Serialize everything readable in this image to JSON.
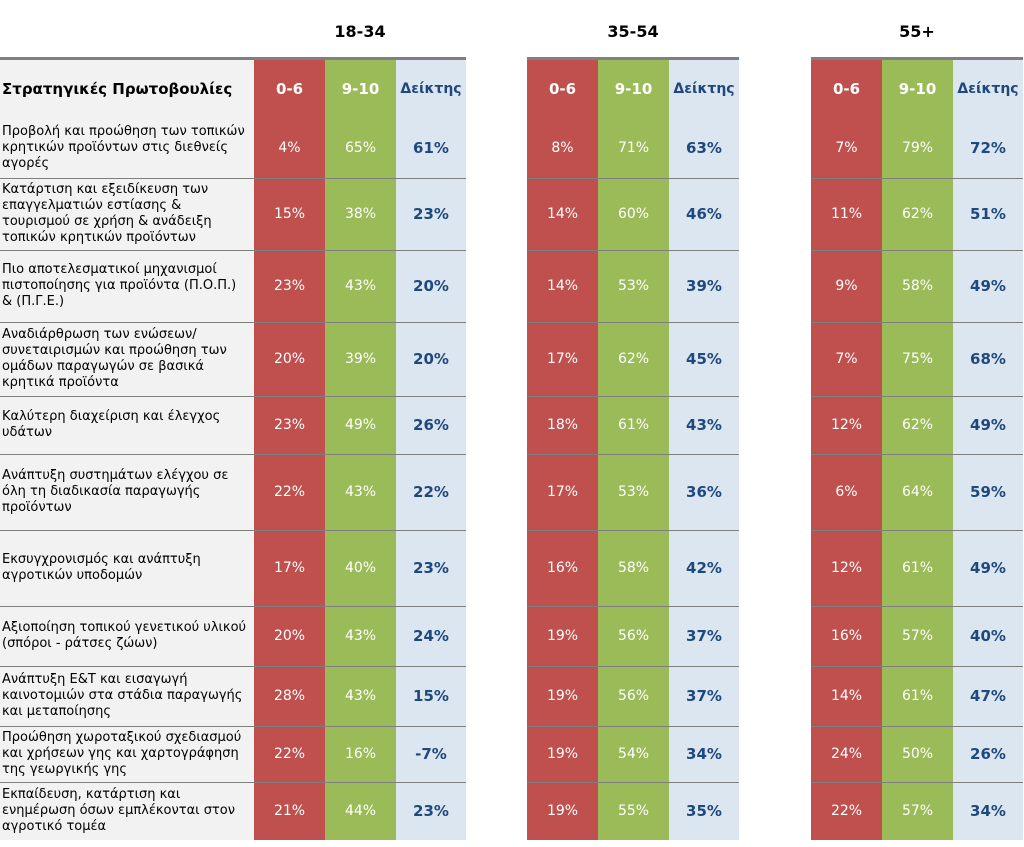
{
  "chart_data": {
    "type": "table",
    "row_header": "Στρατηγικές Πρωτοβουλίες",
    "groups": [
      "18-34",
      "35-54",
      "55+"
    ],
    "columns": [
      "0-6",
      "9-10",
      "Δείκτης"
    ],
    "rows": [
      {
        "label": "Προβολή και προώθηση των τοπικών κρητικών προϊόντων στις διεθνείς αγορές",
        "values": [
          [
            "4%",
            "65%",
            "61%"
          ],
          [
            "8%",
            "71%",
            "63%"
          ],
          [
            "7%",
            "79%",
            "72%"
          ]
        ]
      },
      {
        "label": "Κατάρτιση και εξειδίκευση των επαγγελματιών εστίασης & τουρισμού σε χρήση & ανάδειξη τοπικών κρητικών προϊόντων",
        "values": [
          [
            "15%",
            "38%",
            "23%"
          ],
          [
            "14%",
            "60%",
            "46%"
          ],
          [
            "11%",
            "62%",
            "51%"
          ]
        ]
      },
      {
        "label": "Πιο αποτελεσματικοί μηχανισμοί πιστοποίησης για προϊόντα (Π.Ο.Π.) & (Π.Γ.Ε.)",
        "values": [
          [
            "23%",
            "43%",
            "20%"
          ],
          [
            "14%",
            "53%",
            "39%"
          ],
          [
            "9%",
            "58%",
            "49%"
          ]
        ]
      },
      {
        "label": "Αναδιάρθρωση των ενώσεων/συνεταιρισμών και προώθηση των ομάδων παραγωγών σε βασικά κρητικά προϊόντα",
        "values": [
          [
            "20%",
            "39%",
            "20%"
          ],
          [
            "17%",
            "62%",
            "45%"
          ],
          [
            "7%",
            "75%",
            "68%"
          ]
        ]
      },
      {
        "label": "Καλύτερη διαχείριση και έλεγχος υδάτων",
        "values": [
          [
            "23%",
            "49%",
            "26%"
          ],
          [
            "18%",
            "61%",
            "43%"
          ],
          [
            "12%",
            "62%",
            "49%"
          ]
        ]
      },
      {
        "label": "Ανάπτυξη συστημάτων ελέγχου σε όλη τη διαδικασία παραγωγής προϊόντων",
        "values": [
          [
            "22%",
            "43%",
            "22%"
          ],
          [
            "17%",
            "53%",
            "36%"
          ],
          [
            "6%",
            "64%",
            "59%"
          ]
        ]
      },
      {
        "label": "Εκσυγχρονισμός και ανάπτυξη αγροτικών υποδομών",
        "values": [
          [
            "17%",
            "40%",
            "23%"
          ],
          [
            "16%",
            "58%",
            "42%"
          ],
          [
            "12%",
            "61%",
            "49%"
          ]
        ]
      },
      {
        "label": "Αξιοποίηση τοπικού γενετικού υλικού (σπόροι - ράτσες ζώων)",
        "values": [
          [
            "20%",
            "43%",
            "24%"
          ],
          [
            "19%",
            "56%",
            "37%"
          ],
          [
            "16%",
            "57%",
            "40%"
          ]
        ]
      },
      {
        "label": "Ανάπτυξη Ε&Τ και εισαγωγή καινοτομιών στα στάδια παραγωγής και μεταποίησης",
        "values": [
          [
            "28%",
            "43%",
            "15%"
          ],
          [
            "19%",
            "56%",
            "37%"
          ],
          [
            "14%",
            "61%",
            "47%"
          ]
        ]
      },
      {
        "label": "Προώθηση χωροταξικού σχεδιασμού και χρήσεων γης και χαρτογράφηση της γεωργικής γης",
        "values": [
          [
            "22%",
            "16%",
            "-7%"
          ],
          [
            "19%",
            "54%",
            "34%"
          ],
          [
            "24%",
            "50%",
            "26%"
          ]
        ]
      },
      {
        "label": "Εκπαίδευση, κατάρτιση και ενημέρωση όσων εμπλέκονται στον αγροτικό τομέα",
        "values": [
          [
            "21%",
            "44%",
            "23%"
          ],
          [
            "19%",
            "55%",
            "35%"
          ],
          [
            "22%",
            "57%",
            "34%"
          ]
        ]
      }
    ]
  },
  "colors": {
    "low": "#c0504d",
    "high": "#9bbb59",
    "index_bg": "#dce6f1",
    "index_text": "#1f497d",
    "label_bg": "#f2f2f2"
  }
}
